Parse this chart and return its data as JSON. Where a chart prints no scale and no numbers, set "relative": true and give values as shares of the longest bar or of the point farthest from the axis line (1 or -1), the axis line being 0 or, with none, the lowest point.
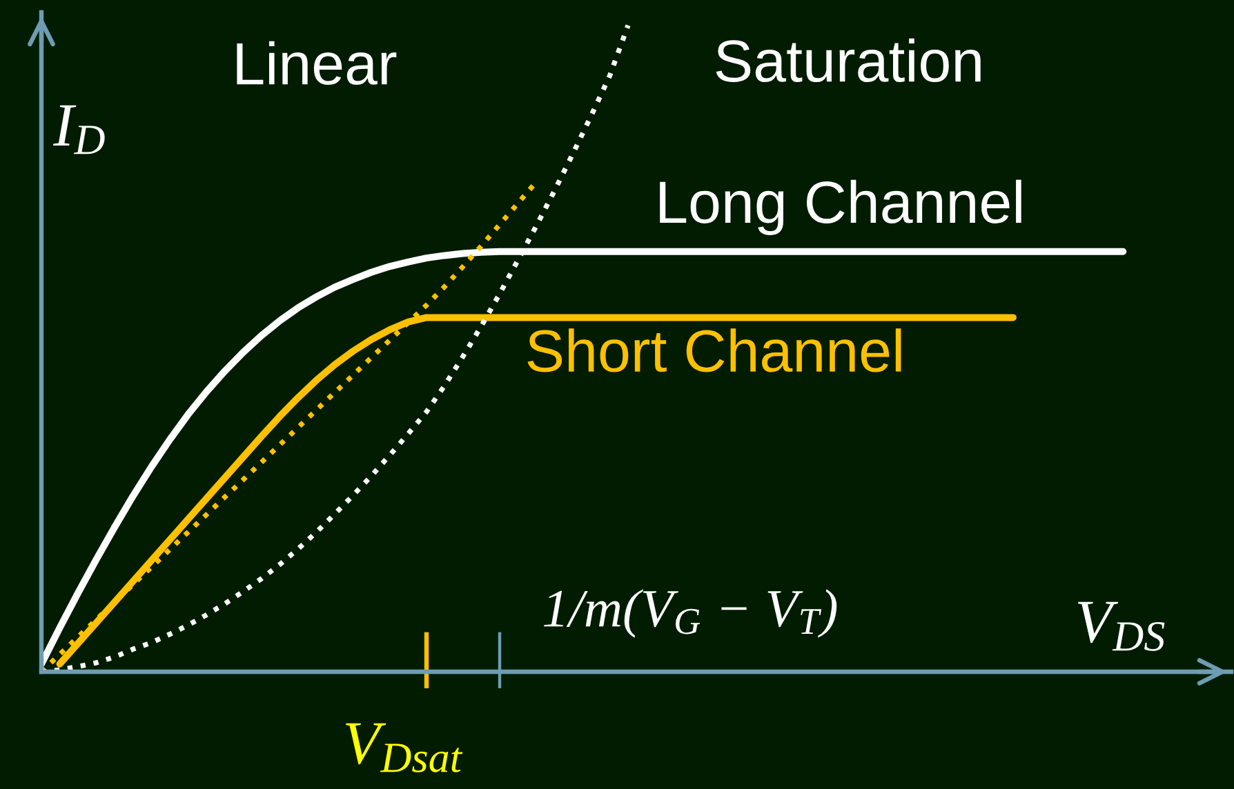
{
  "chart_data": {
    "type": "line",
    "relative": true,
    "xlabel": "V$_{DS}$",
    "ylabel": "I$_{D}$",
    "line_style": "solid",
    "annotations": [
      "Linear",
      "Saturation",
      "V$_{Dsat}$",
      "1/m(V$_{G}$ − V$_{T}$)"
    ],
    "categories": [
      null,
      null,
      null,
      null,
      null,
      null,
      null,
      null,
      null,
      null,
      null,
      null,
      null,
      null,
      null,
      null,
      null,
      null,
      null,
      null,
      null,
      null,
      null,
      null,
      null,
      null,
      null,
      null,
      null,
      null,
      null,
      null,
      null,
      null,
      null,
      null,
      null,
      null,
      null,
      null,
      null,
      null,
      null,
      null,
      null,
      null,
      null,
      null,
      null,
      null,
      null,
      null,
      null,
      null,
      null,
      null,
      null,
      null,
      null,
      null
    ],
    "series": [
      {
        "name": "Long Channel",
        "color": "#ffffff",
        "values": [
          0.012,
          0.068,
          0.122,
          0.174,
          0.224,
          0.272,
          0.317,
          0.359,
          0.398,
          0.433,
          0.465,
          0.494,
          0.52,
          0.543,
          0.563,
          0.58,
          0.595,
          0.607,
          0.618,
          0.627,
          0.634,
          0.64,
          0.644,
          0.647,
          0.649,
          0.65,
          0.65,
          0.65,
          0.65,
          0.65,
          0.65,
          0.65,
          0.65,
          0.65,
          0.65,
          0.65,
          0.65,
          0.65,
          0.65,
          0.65,
          0.65,
          0.65,
          0.65,
          0.65,
          0.65,
          0.65,
          0.65,
          0.65,
          0.65,
          0.65,
          0.65,
          0.65,
          0.65,
          0.65,
          0.65,
          0.65,
          0.65,
          0.65,
          0.65,
          0.65
        ]
      },
      {
        "name": "Short Channel",
        "color": "#ffc000",
        "values": [
          null,
          0.012,
          0.044,
          0.076,
          0.108,
          0.14,
          0.172,
          0.204,
          0.236,
          0.268,
          0.3,
          0.332,
          0.364,
          0.395,
          0.424,
          0.451,
          0.475,
          0.496,
          0.514,
          0.529,
          0.541,
          0.548,
          0.548,
          0.548,
          0.548,
          0.548,
          0.548,
          0.548,
          0.548,
          0.548,
          0.548,
          0.548,
          0.548,
          0.548,
          0.548,
          0.548,
          0.548,
          0.548,
          0.548,
          0.548,
          0.548,
          0.548,
          0.548,
          0.548,
          0.548,
          0.548,
          0.548,
          0.548,
          0.548,
          0.548,
          0.548,
          0.548,
          0.548,
          0.548,
          null,
          null,
          null,
          null,
          null,
          null
        ]
      },
      {
        "color": "#ffc000",
        "line_style": "dotted",
        "values": [
          0,
          0.027,
          0.054,
          0.081,
          0.108,
          0.135,
          0.162,
          0.189,
          0.216,
          0.243,
          0.27,
          0.297,
          0.324,
          0.351,
          0.378,
          0.405,
          0.432,
          0.459,
          0.486,
          0.513,
          0.54,
          0.567,
          0.596,
          0.627,
          0.659,
          0.692,
          0.725,
          0.758,
          null,
          null,
          null,
          null,
          null,
          null,
          null,
          null,
          null,
          null,
          null,
          null,
          null,
          null,
          null,
          null,
          null,
          null,
          null,
          null,
          null,
          null,
          null,
          null,
          null,
          null,
          null,
          null,
          null,
          null,
          null,
          null
        ]
      },
      {
        "color": "#ffffff",
        "line_style": "dotted",
        "values": [
          0,
          0.003,
          0.008,
          0.014,
          0.023,
          0.035,
          0.045,
          0.058,
          0.072,
          0.088,
          0.105,
          0.124,
          0.144,
          0.166,
          0.19,
          0.216,
          0.244,
          0.273,
          0.303,
          0.335,
          0.368,
          0.402,
          0.443,
          0.488,
          0.535,
          0.585,
          0.637,
          0.69,
          0.745,
          0.802,
          0.861,
          0.922,
          1,
          null,
          null,
          null,
          null,
          null,
          null,
          null,
          null,
          null,
          null,
          null,
          null,
          null,
          null,
          null,
          null,
          null,
          null,
          null,
          null,
          null,
          null,
          null,
          null,
          null,
          null,
          null
        ]
      }
    ]
  }
}
